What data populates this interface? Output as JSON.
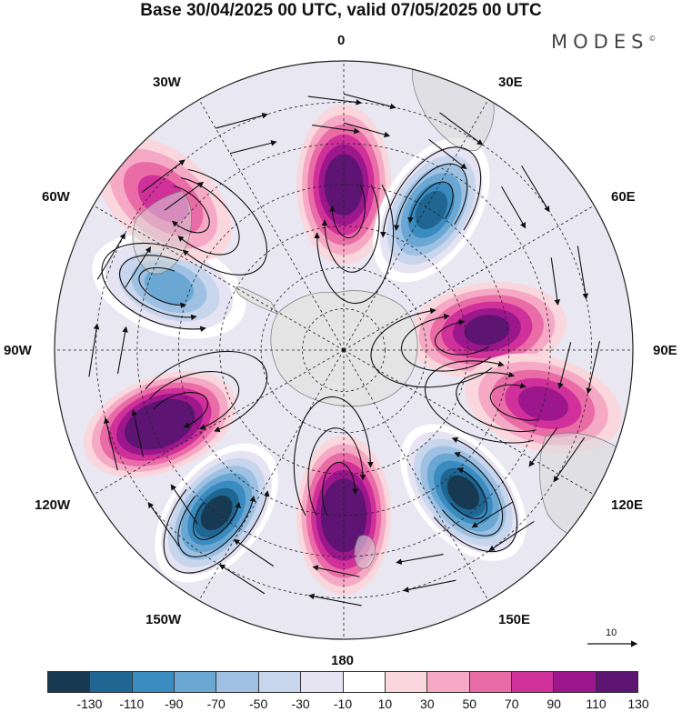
{
  "title": "Base 30/04/2025 00 UTC, valid 07/05/2025 00 UTC",
  "brand": "MODES",
  "brand_mark": "©",
  "longitude_labels": {
    "top": "0",
    "bottom": "180",
    "left": "90W",
    "right": "90E",
    "upper_left_1": "30W",
    "upper_left_2": "60W",
    "lower_left_1": "120W",
    "lower_left_2": "150W",
    "upper_right_1": "30E",
    "upper_right_2": "60E",
    "lower_right_1": "120E",
    "lower_right_2": "150E"
  },
  "reference_vector": {
    "label": "10"
  },
  "colorbar": {
    "colors": [
      "#173a52",
      "#1f6693",
      "#3a8bbf",
      "#6aa7d3",
      "#9ec1e3",
      "#c7d6ec",
      "#e6e4f2",
      "#ffffff",
      "#fad7dd",
      "#f5a9c4",
      "#ea6ca7",
      "#d0309a",
      "#9c168c",
      "#5d1473"
    ],
    "ticks": [
      "-130",
      "-110",
      "-90",
      "-70",
      "-50",
      "-30",
      "-10",
      "10",
      "30",
      "50",
      "70",
      "90",
      "110",
      "130"
    ]
  },
  "anomaly_centers": [
    {
      "label": "high",
      "lon": 0,
      "lat": -50,
      "value": 110
    },
    {
      "label": "low",
      "lon": 32,
      "lat": -50,
      "value": -110
    },
    {
      "label": "high",
      "lon": 82,
      "lat": -55,
      "value": 90
    },
    {
      "label": "high",
      "lon": 105,
      "lat": -40,
      "value": 70
    },
    {
      "label": "low",
      "lon": 140,
      "lat": -45,
      "value": -130
    },
    {
      "label": "high",
      "lon": 180,
      "lat": -50,
      "value": 130
    },
    {
      "label": "low",
      "lon": -142,
      "lat": -40,
      "value": -130
    },
    {
      "label": "high",
      "lon": -112,
      "lat": -42,
      "value": 130
    },
    {
      "label": "low",
      "lon": -70,
      "lat": -45,
      "value": -70
    },
    {
      "label": "high",
      "lon": -50,
      "lat": -33,
      "value": 50
    }
  ]
}
